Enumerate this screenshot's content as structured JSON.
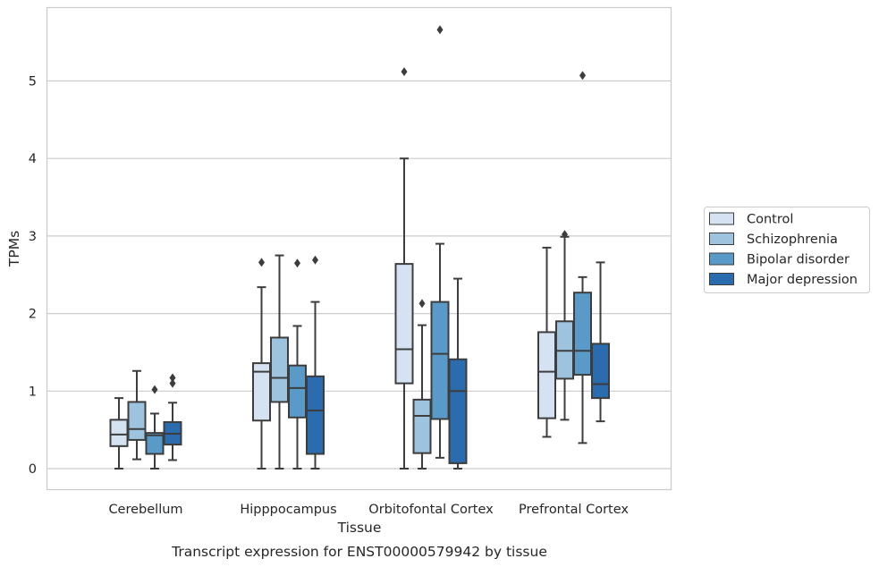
{
  "chart_data": {
    "type": "boxplot",
    "xlabel": "Tissue",
    "ylabel": "TPMs",
    "caption": "Transcript expression for ENST00000579942 by tissue",
    "ylim": [
      -0.28,
      5.95
    ],
    "yticks": [
      0,
      1,
      2,
      3,
      4,
      5
    ],
    "grid": "horizontal",
    "legend_position": "right",
    "categories": [
      "Cerebellum",
      "Hipppocampus",
      "Orbitofontal Cortex",
      "Prefrontal Cortex"
    ],
    "series": [
      {
        "name": "Control",
        "color": "#d4e2f2",
        "boxes": [
          {
            "whislo": 0.0,
            "q1": 0.29,
            "med": 0.44,
            "q3": 0.63,
            "whishi": 0.91,
            "fliers": []
          },
          {
            "whislo": 0.0,
            "q1": 0.62,
            "med": 1.25,
            "q3": 1.36,
            "whishi": 2.34,
            "fliers": [
              2.66
            ]
          },
          {
            "whislo": 0.0,
            "q1": 1.1,
            "med": 1.54,
            "q3": 2.64,
            "whishi": 4.0,
            "fliers": [
              5.12
            ]
          },
          {
            "whislo": 0.41,
            "q1": 0.65,
            "med": 1.25,
            "q3": 1.76,
            "whishi": 2.85,
            "fliers": []
          }
        ]
      },
      {
        "name": "Schizophrenia",
        "color": "#9dc3de",
        "boxes": [
          {
            "whislo": 0.12,
            "q1": 0.37,
            "med": 0.51,
            "q3": 0.86,
            "whishi": 1.26,
            "fliers": []
          },
          {
            "whislo": 0.0,
            "q1": 0.86,
            "med": 1.17,
            "q3": 1.69,
            "whishi": 2.75,
            "fliers": []
          },
          {
            "whislo": 0.0,
            "q1": 0.2,
            "med": 0.68,
            "q3": 0.89,
            "whishi": 1.85,
            "fliers": [
              2.13
            ]
          },
          {
            "whislo": 0.63,
            "q1": 1.16,
            "med": 1.52,
            "q3": 1.9,
            "whishi": 2.99,
            "fliers": [
              3.02
            ]
          }
        ]
      },
      {
        "name": "Bipolar disorder",
        "color": "#5a9ac9",
        "boxes": [
          {
            "whislo": 0.0,
            "q1": 0.19,
            "med": 0.43,
            "q3": 0.46,
            "whishi": 0.71,
            "fliers": [
              1.02
            ]
          },
          {
            "whislo": 0.0,
            "q1": 0.66,
            "med": 1.04,
            "q3": 1.33,
            "whishi": 1.84,
            "fliers": [
              2.65
            ]
          },
          {
            "whislo": 0.14,
            "q1": 0.64,
            "med": 1.48,
            "q3": 2.15,
            "whishi": 2.9,
            "fliers": [
              5.66
            ]
          },
          {
            "whislo": 0.33,
            "q1": 1.21,
            "med": 1.52,
            "q3": 2.27,
            "whishi": 2.47,
            "fliers": [
              5.07
            ]
          }
        ]
      },
      {
        "name": "Major depression",
        "color": "#2a6cad",
        "boxes": [
          {
            "whislo": 0.11,
            "q1": 0.31,
            "med": 0.45,
            "q3": 0.6,
            "whishi": 0.85,
            "fliers": [
              1.1,
              1.17
            ]
          },
          {
            "whislo": 0.0,
            "q1": 0.19,
            "med": 0.75,
            "q3": 1.19,
            "whishi": 2.15,
            "fliers": [
              2.69
            ]
          },
          {
            "whislo": 0.0,
            "q1": 0.07,
            "med": 1.0,
            "q3": 1.41,
            "whishi": 2.45,
            "fliers": []
          },
          {
            "whislo": 0.61,
            "q1": 0.91,
            "med": 1.09,
            "q3": 1.61,
            "whishi": 2.66,
            "fliers": []
          }
        ]
      }
    ]
  }
}
